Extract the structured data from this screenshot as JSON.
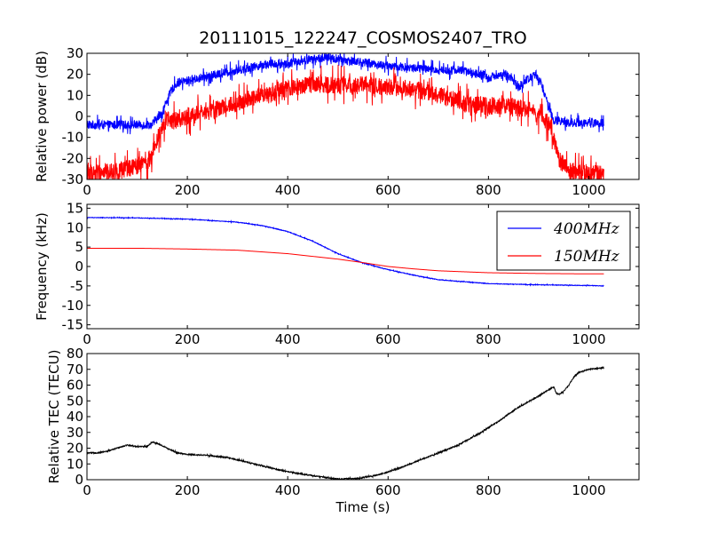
{
  "figure": {
    "title": "20111015_122247_COSMOS2407_TRO"
  },
  "chart_data": [
    {
      "type": "line",
      "ylabel": "Relative power (dB)",
      "xlabel": "",
      "xlim": [
        0,
        1100
      ],
      "ylim": [
        -30,
        30
      ],
      "xticks": [
        0,
        200,
        400,
        600,
        800,
        1000
      ],
      "yticks": [
        -30,
        -20,
        -10,
        0,
        10,
        20,
        30
      ],
      "grid": false,
      "legend": "none",
      "series": [
        {
          "color": "#0000ff",
          "noise": 3,
          "x": [
            0,
            100,
            130,
            140,
            150,
            160,
            170,
            180,
            200,
            240,
            280,
            320,
            360,
            400,
            440,
            480,
            500,
            540,
            600,
            650,
            700,
            750,
            780,
            800,
            820,
            840,
            860,
            880,
            895,
            905,
            915,
            930,
            960,
            1000,
            1030
          ],
          "y": [
            -4,
            -4,
            -4,
            -1,
            2,
            8,
            13,
            16,
            17,
            19,
            21,
            23,
            25,
            25,
            27,
            28,
            27,
            26,
            24,
            23,
            22,
            22,
            20,
            18,
            20,
            19,
            14,
            18,
            20,
            16,
            8,
            -2,
            -3,
            -3,
            -3
          ]
        },
        {
          "color": "#ff0000",
          "noise": 6,
          "x": [
            0,
            60,
            100,
            120,
            130,
            140,
            150,
            160,
            180,
            200,
            240,
            280,
            320,
            360,
            400,
            440,
            480,
            520,
            560,
            600,
            650,
            700,
            760,
            800,
            840,
            880,
            900,
            920,
            930,
            940,
            960,
            1000,
            1030
          ],
          "y": [
            -27,
            -26,
            -24,
            -22,
            -18,
            -10,
            -4,
            -2,
            -2,
            0,
            2,
            5,
            8,
            10,
            13,
            15,
            15,
            15,
            15,
            14,
            13,
            10,
            6,
            5,
            5,
            3,
            0,
            -3,
            -10,
            -20,
            -26,
            -27,
            -27
          ]
        }
      ]
    },
    {
      "type": "line",
      "ylabel": "Frequency (kHz)",
      "xlabel": "",
      "xlim": [
        0,
        1100
      ],
      "ylim": [
        -16,
        16
      ],
      "xticks": [
        0,
        200,
        400,
        600,
        800,
        1000
      ],
      "yticks": [
        -15,
        -10,
        -5,
        0,
        5,
        10,
        15
      ],
      "grid": false,
      "legend": "top-right",
      "series": [
        {
          "name": "400MHz",
          "color": "#0000ff",
          "noise": 0.1,
          "x": [
            0,
            100,
            200,
            300,
            350,
            400,
            450,
            500,
            550,
            600,
            650,
            700,
            800,
            900,
            1000,
            1030
          ],
          "y": [
            12.6,
            12.5,
            12.2,
            11.4,
            10.5,
            9.0,
            6.5,
            3.3,
            0.9,
            -0.8,
            -2.2,
            -3.4,
            -4.4,
            -4.7,
            -4.9,
            -5.0
          ]
        },
        {
          "name": "150MHz",
          "color": "#ff0000",
          "noise": 0,
          "x": [
            0,
            100,
            200,
            300,
            400,
            450,
            500,
            550,
            600,
            650,
            700,
            800,
            900,
            1000,
            1030
          ],
          "y": [
            4.7,
            4.7,
            4.5,
            4.2,
            3.3,
            2.6,
            1.9,
            1.0,
            0.0,
            -0.6,
            -1.1,
            -1.6,
            -1.8,
            -1.9,
            -1.9
          ]
        }
      ]
    },
    {
      "type": "line",
      "ylabel": "Relative TEC (TECU)",
      "xlabel": "Time (s)",
      "xlim": [
        0,
        1100
      ],
      "ylim": [
        0,
        80
      ],
      "xticks": [
        0,
        200,
        400,
        600,
        800,
        1000
      ],
      "yticks": [
        0,
        10,
        20,
        30,
        40,
        50,
        60,
        70,
        80
      ],
      "grid": false,
      "legend": "none",
      "series": [
        {
          "color": "#000000",
          "noise": 0.5,
          "x": [
            0,
            20,
            40,
            60,
            80,
            100,
            120,
            130,
            140,
            160,
            180,
            200,
            240,
            280,
            320,
            360,
            400,
            440,
            480,
            500,
            540,
            580,
            620,
            660,
            700,
            740,
            780,
            820,
            860,
            900,
            920,
            930,
            935,
            940,
            950,
            960,
            970,
            980,
            1000,
            1030
          ],
          "y": [
            17,
            17,
            18,
            20,
            22,
            21,
            21,
            24,
            23,
            20,
            17,
            16,
            15.5,
            14,
            11,
            8,
            5,
            3,
            1.2,
            0.5,
            0.8,
            3,
            7,
            12,
            17,
            22,
            29,
            37,
            46,
            53,
            57,
            59,
            55,
            54,
            56,
            60,
            65,
            68,
            70,
            71
          ]
        }
      ]
    }
  ]
}
